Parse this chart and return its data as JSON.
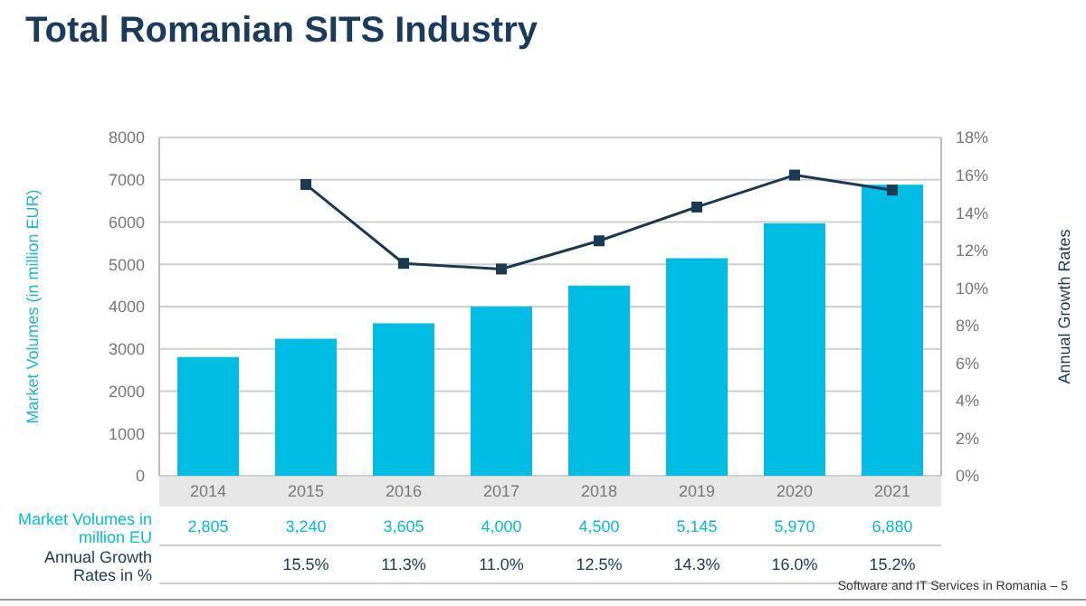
{
  "chart_data": {
    "type": "bar",
    "title": "Total Romanian SITS Industry",
    "ylabel": "Market Volumes (in million EUR)",
    "y2label": "Annual Growth Rates",
    "categories": [
      "2014",
      "2015",
      "2016",
      "2017",
      "2018",
      "2019",
      "2020",
      "2021"
    ],
    "series": [
      {
        "name": "Market Volumes in million EU",
        "color": "#00bde3",
        "values": [
          2805,
          3240,
          3605,
          4000,
          4500,
          5145,
          5970,
          6880
        ],
        "value_labels": [
          "2,805",
          "3,240",
          "3,605",
          "4,000",
          "4,500",
          "5,145",
          "5,970",
          "6,880"
        ]
      },
      {
        "name": "Annual Growth Rates in %",
        "type": "line",
        "axis": "y2",
        "color": "#1b3a52",
        "values": [
          null,
          15.5,
          11.3,
          11.0,
          12.5,
          14.3,
          16.0,
          15.2
        ],
        "value_labels": [
          null,
          "15.5%",
          "11.3%",
          "11.0%",
          "12.5%",
          "14.3%",
          "16.0%",
          "15.2%"
        ]
      }
    ],
    "ylim": [
      0,
      8000
    ],
    "yticks": [
      0,
      1000,
      2000,
      3000,
      4000,
      5000,
      6000,
      7000,
      8000
    ],
    "y2lim": [
      0,
      18
    ],
    "y2ticks": [
      {
        "value": 0,
        "label": "0%"
      },
      {
        "value": 2,
        "label": "2%"
      },
      {
        "value": 4,
        "label": "4%"
      },
      {
        "value": 6,
        "label": "6%"
      },
      {
        "value": 8,
        "label": "8%"
      },
      {
        "value": 10,
        "label": "10%"
      },
      {
        "value": 12,
        "label": "12%"
      },
      {
        "value": 14,
        "label": "14%"
      },
      {
        "value": 16,
        "label": "16%"
      },
      {
        "value": 18,
        "label": "18%"
      }
    ],
    "grid": "y",
    "marker": "square",
    "line_style": "solid",
    "annotations": [
      "Software and IT Services in Romania – 5"
    ]
  }
}
